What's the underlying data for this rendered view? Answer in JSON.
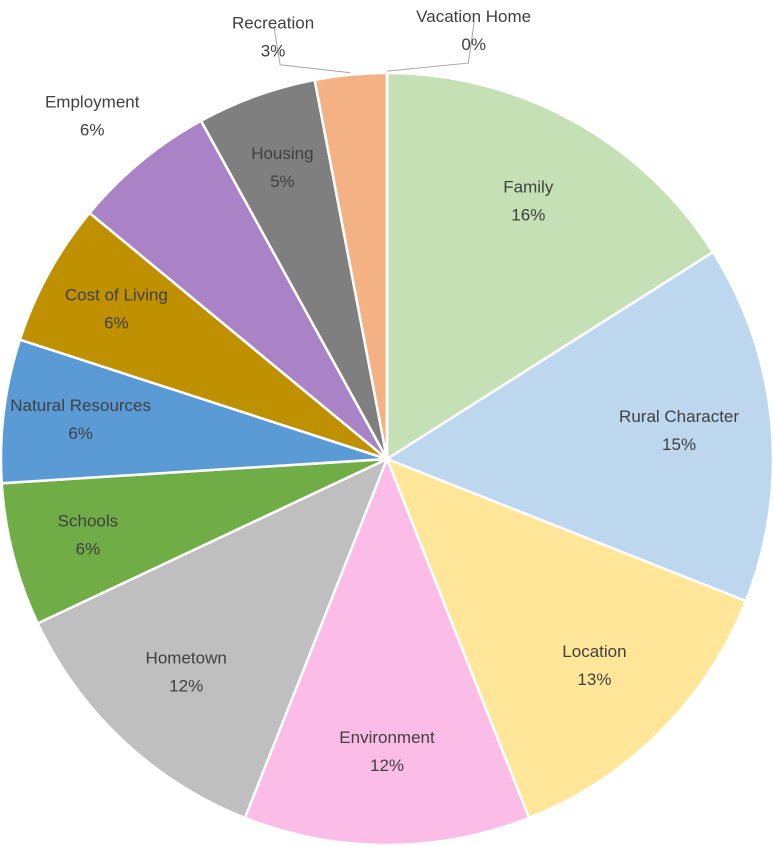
{
  "chart_data": {
    "type": "pie",
    "categories": [
      "Family",
      "Rural Character",
      "Location",
      "Environment",
      "Hometown",
      "Schools",
      "Natural Resources",
      "Cost of Living",
      "Employment",
      "Housing",
      "Recreation",
      "Vacation Home"
    ],
    "values": [
      16,
      15,
      13,
      12,
      12,
      6,
      6,
      6,
      6,
      5,
      3,
      0
    ],
    "value_labels": [
      "16%",
      "15%",
      "13%",
      "12%",
      "12%",
      "6%",
      "6%",
      "6%",
      "6%",
      "5%",
      "3%",
      "0%"
    ],
    "colors": [
      "#c5e0b4",
      "#bdd7ee",
      "#ffe699",
      "#fbbce7",
      "#bfbfbf",
      "#70ad47",
      "#5b9bd5",
      "#bf9000",
      "#a983c6",
      "#7f7f7f",
      "#f4b183",
      "#c55a11"
    ]
  }
}
